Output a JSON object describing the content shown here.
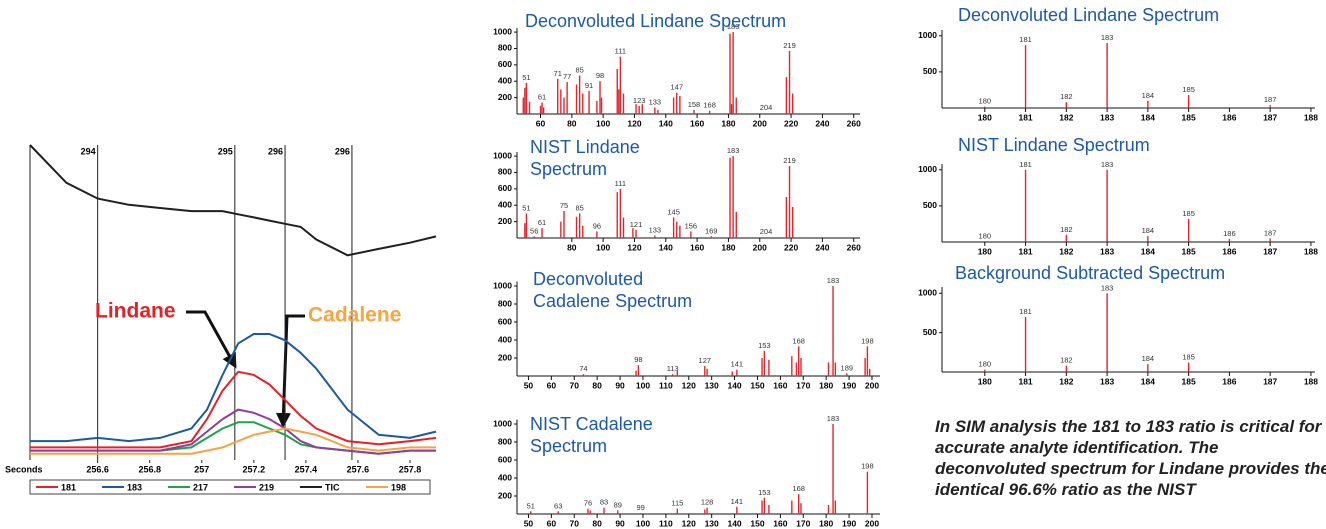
{
  "chart_data": [
    {
      "type": "line",
      "x_label": "Seconds",
      "x": [
        256.34,
        256.48,
        256.6,
        256.72,
        256.84,
        256.96,
        257.02,
        257.08,
        257.14,
        257.2,
        257.26,
        257.32,
        257.38,
        257.44,
        257.56,
        257.68,
        257.8,
        257.9
      ],
      "xlim": [
        256.34,
        257.9
      ],
      "xticks": [
        256.6,
        256.8,
        257,
        257.2,
        257.4,
        257.6,
        257.8
      ],
      "ylim": [
        0,
        100
      ],
      "series": [
        {
          "name": "181",
          "color": "#e32228",
          "values": [
            4,
            4,
            4,
            4,
            4,
            6,
            13,
            22,
            28,
            27,
            24,
            19,
            14,
            10,
            6,
            5,
            6,
            7
          ]
        },
        {
          "name": "183",
          "color": "#1a5aa0",
          "values": [
            6,
            6,
            7,
            6,
            7,
            10,
            16,
            27,
            37,
            40,
            40,
            38,
            34,
            29,
            16,
            8,
            7,
            9
          ]
        },
        {
          "name": "217",
          "color": "#1fa34a",
          "values": [
            3,
            3,
            3,
            3,
            3,
            4,
            7,
            10,
            12,
            12,
            10,
            8,
            5,
            4,
            3,
            2,
            3,
            3
          ]
        },
        {
          "name": "219",
          "color": "#8e3f9a",
          "values": [
            3,
            3,
            3,
            3,
            3,
            5,
            9,
            13,
            16,
            15,
            13,
            10,
            6,
            4,
            3,
            2,
            3,
            3
          ]
        },
        {
          "name": "TIC",
          "color": "#231f20",
          "values": [
            100,
            88,
            83,
            81,
            80,
            79,
            79,
            79,
            78,
            77,
            76,
            75,
            74,
            70,
            65,
            67,
            69,
            71
          ]
        },
        {
          "name": "198",
          "color": "#f5a343",
          "values": [
            2,
            2,
            2,
            2,
            2,
            2,
            3,
            4,
            6,
            8,
            9,
            10,
            9,
            8,
            4,
            3,
            4,
            4
          ]
        }
      ],
      "markers": [
        {
          "x": 256.6,
          "label": "294"
        },
        {
          "x": 257.127,
          "label": "295"
        },
        {
          "x": 257.32,
          "label": "296"
        },
        {
          "x": 257.577,
          "label": "296"
        }
      ],
      "annotations": [
        {
          "text": "Lindane",
          "color": "#e32228"
        },
        {
          "text": "Cadalene",
          "color": "#f7a541"
        }
      ]
    },
    {
      "type": "stem",
      "title": "Deconvoluted Lindane Spectrum",
      "color": "#e0262d",
      "x": [
        49,
        50,
        51,
        53,
        60,
        61,
        62,
        71,
        73,
        75,
        77,
        83,
        85,
        87,
        91,
        96,
        98,
        99,
        109,
        110,
        111,
        113,
        121,
        123,
        125,
        133,
        135,
        145,
        147,
        149,
        158,
        168,
        181,
        182,
        183,
        185,
        204,
        217,
        219,
        221
      ],
      "values": [
        200,
        320,
        380,
        150,
        100,
        140,
        80,
        430,
        300,
        200,
        390,
        360,
        470,
        250,
        280,
        160,
        400,
        200,
        550,
        300,
        700,
        250,
        120,
        100,
        120,
        80,
        50,
        200,
        260,
        220,
        50,
        40,
        980,
        120,
        1000,
        200,
        10,
        450,
        770,
        250
      ],
      "peak_labels": [
        null,
        null,
        "51",
        null,
        null,
        "61",
        null,
        "71",
        null,
        null,
        "77",
        null,
        "85",
        null,
        "91",
        null,
        "98",
        null,
        null,
        null,
        "111",
        null,
        null,
        "123",
        null,
        "133",
        null,
        null,
        "147",
        null,
        "158",
        "168",
        null,
        null,
        "183",
        null,
        "204",
        null,
        "219",
        null
      ],
      "xlim": [
        45,
        264
      ],
      "xticks": [
        60,
        80,
        100,
        120,
        140,
        160,
        180,
        200,
        220,
        240,
        260
      ],
      "ylim": [
        0,
        1050
      ],
      "yticks": [
        200,
        400,
        600,
        800,
        1000
      ]
    },
    {
      "type": "stem",
      "title": "NIST Lindane Spectrum",
      "color": "#e0262d",
      "x": [
        50,
        51,
        56,
        61,
        73,
        75,
        83,
        85,
        87,
        96,
        109,
        111,
        113,
        119,
        121,
        133,
        145,
        147,
        149,
        156,
        169,
        181,
        183,
        185,
        204,
        217,
        219,
        221
      ],
      "values": [
        180,
        300,
        20,
        120,
        200,
        330,
        260,
        300,
        150,
        80,
        560,
        600,
        250,
        120,
        100,
        30,
        250,
        200,
        150,
        80,
        20,
        980,
        1000,
        320,
        10,
        500,
        880,
        380
      ],
      "peak_labels": [
        null,
        "51",
        "56",
        "61",
        null,
        "75",
        null,
        "85",
        null,
        "96",
        null,
        "111",
        null,
        null,
        "121",
        "133",
        "145",
        null,
        null,
        "156",
        "169",
        null,
        "183",
        null,
        "204",
        null,
        "219",
        null
      ],
      "xlim": [
        45,
        264
      ],
      "xticks": [
        80,
        100,
        120,
        140,
        160,
        180,
        200,
        220,
        240,
        260
      ],
      "ylim": [
        0,
        1050
      ],
      "yticks": [
        200,
        400,
        600,
        800,
        1000
      ]
    },
    {
      "type": "stem",
      "title": "Deconvoluted Cadalene Spectrum",
      "color": "#e0262d",
      "x": [
        74,
        97,
        98,
        113,
        115,
        127,
        128,
        139,
        141,
        152,
        153,
        155,
        165,
        167,
        168,
        169,
        181,
        183,
        184,
        189,
        197,
        198,
        199
      ],
      "values": [
        20,
        60,
        120,
        20,
        60,
        110,
        80,
        50,
        70,
        200,
        280,
        180,
        220,
        150,
        330,
        200,
        150,
        1000,
        150,
        30,
        200,
        330,
        80
      ],
      "peak_labels": [
        "74",
        null,
        "98",
        "113",
        null,
        "127",
        null,
        null,
        "141",
        null,
        "153",
        null,
        null,
        null,
        "168",
        null,
        null,
        "183",
        null,
        "189",
        null,
        "198",
        null
      ],
      "xlim": [
        45,
        203.5
      ],
      "xticks": [
        50,
        60,
        70,
        80,
        90,
        100,
        110,
        120,
        130,
        140,
        150,
        160,
        170,
        180,
        190,
        200
      ],
      "ylim": [
        0,
        1050
      ],
      "yticks": [
        200,
        400,
        600,
        800,
        1000
      ]
    },
    {
      "type": "stem",
      "title": "NIST Cadalene Spectrum",
      "color": "#e0262d",
      "x": [
        51,
        63,
        76,
        77,
        83,
        89,
        99,
        115,
        127,
        128,
        141,
        152,
        153,
        155,
        165,
        168,
        169,
        181,
        183,
        184,
        198
      ],
      "values": [
        30,
        30,
        60,
        40,
        70,
        40,
        10,
        60,
        50,
        70,
        80,
        150,
        180,
        100,
        150,
        220,
        120,
        100,
        1000,
        150,
        470
      ],
      "peak_labels": [
        "51",
        "63",
        "76",
        null,
        "83",
        "89",
        "99",
        "115",
        null,
        "128",
        "141",
        null,
        "153",
        null,
        null,
        "168",
        null,
        null,
        "183",
        null,
        "198"
      ],
      "xlim": [
        45,
        203.5
      ],
      "xticks": [
        50,
        60,
        70,
        80,
        90,
        100,
        110,
        120,
        130,
        140,
        150,
        160,
        170,
        180,
        190,
        200
      ],
      "ylim": [
        0,
        1050
      ],
      "yticks": [
        200,
        400,
        600,
        800,
        1000
      ]
    },
    {
      "type": "stem",
      "title": "Deconvoluted Lindane Spectrum",
      "color": "#e0262d",
      "x": [
        180,
        181,
        182,
        183,
        184,
        185,
        187
      ],
      "values": [
        20,
        870,
        80,
        900,
        100,
        180,
        40
      ],
      "peak_labels": [
        "180",
        "181",
        "182",
        "183",
        "184",
        "185",
        "187"
      ],
      "xlim": [
        178.95,
        188.1
      ],
      "xticks": [
        180,
        181,
        182,
        183,
        184,
        185,
        186,
        187,
        188
      ],
      "ylim": [
        0,
        1080
      ],
      "yticks": [
        500,
        1000
      ]
    },
    {
      "type": "stem",
      "title": "NIST Lindane Spectrum",
      "color": "#e0262d",
      "x": [
        180,
        181,
        182,
        183,
        184,
        185,
        186,
        187
      ],
      "values": [
        10,
        1000,
        100,
        1000,
        80,
        320,
        40,
        50
      ],
      "peak_labels": [
        "180",
        "181",
        "182",
        "183",
        "184",
        "185",
        "186",
        "187"
      ],
      "xlim": [
        178.95,
        188.1
      ],
      "xticks": [
        180,
        181,
        182,
        183,
        184,
        185,
        186,
        187,
        188
      ],
      "ylim": [
        0,
        1080
      ],
      "yticks": [
        500,
        1000
      ]
    },
    {
      "type": "stem",
      "title": "Background Subtracted Spectrum",
      "color": "#e0262d",
      "x": [
        180,
        181,
        182,
        183,
        184,
        185
      ],
      "values": [
        30,
        700,
        80,
        1000,
        100,
        120
      ],
      "peak_labels": [
        "180",
        "181",
        "182",
        "183",
        "184",
        "185"
      ],
      "xlim": [
        178.95,
        188.1
      ],
      "xticks": [
        180,
        181,
        182,
        183,
        184,
        185,
        186,
        187,
        188
      ],
      "ylim": [
        0,
        1080
      ],
      "yticks": [
        500,
        1000
      ]
    }
  ],
  "caption": "In SIM analysis the 181 to 183 ratio is critical for accurate analyte identification. The deconvoluted spectrum for Lindane provides the identical 96.6% ratio as the NIST"
}
